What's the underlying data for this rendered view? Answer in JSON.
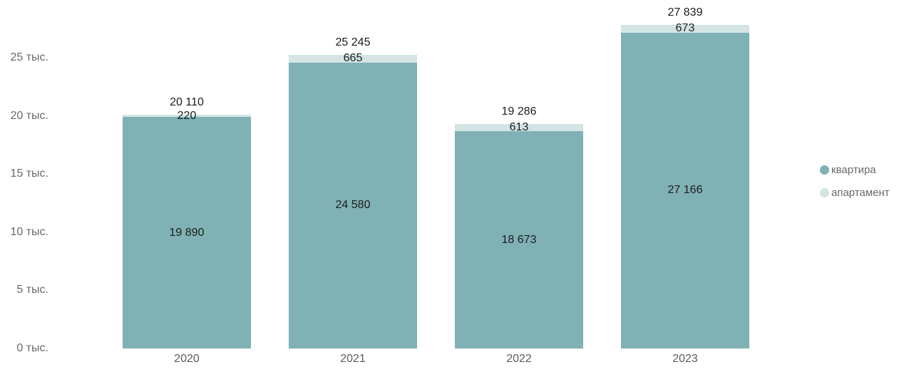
{
  "chart_data": {
    "type": "bar",
    "stacked": true,
    "title": "",
    "xlabel": "",
    "ylabel": "",
    "categories": [
      "2020",
      "2021",
      "2022",
      "2023"
    ],
    "series": [
      {
        "name": "квартира",
        "color": "#7FB1B5",
        "values": [
          19890,
          24580,
          18673,
          27166
        ],
        "value_labels": [
          "19 890",
          "24 580",
          "18 673",
          "27 166"
        ]
      },
      {
        "name": "апартамент",
        "color": "#D4E4E5",
        "values": [
          220,
          665,
          613,
          673
        ],
        "value_labels": [
          "220",
          "665",
          "613",
          "673"
        ]
      }
    ],
    "totals": [
      20110,
      25245,
      19286,
      27839
    ],
    "total_labels": [
      "20 110",
      "25 245",
      "19 286",
      "27 839"
    ],
    "y_ticks": [
      {
        "value": 0,
        "label": "0 тыс."
      },
      {
        "value": 5000,
        "label": "5 тыс."
      },
      {
        "value": 10000,
        "label": "10 тыс."
      },
      {
        "value": 15000,
        "label": "15 тыс."
      },
      {
        "value": 20000,
        "label": "20 тыс."
      },
      {
        "value": 25000,
        "label": "25 тыс."
      }
    ],
    "ylim": [
      0,
      25000
    ],
    "grid": false,
    "legend_position": "right",
    "legend": [
      "квартира",
      "апартамент"
    ]
  }
}
